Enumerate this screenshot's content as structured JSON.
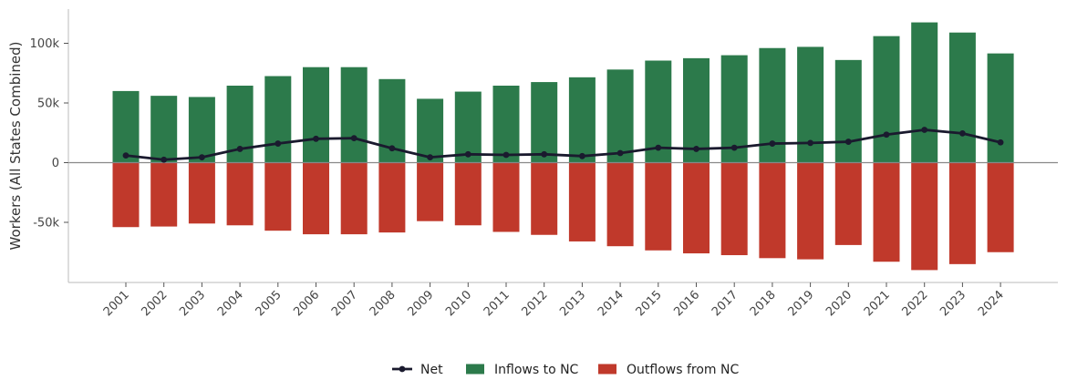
{
  "chart_data": {
    "type": "bar",
    "title": "",
    "xlabel": "",
    "ylabel": "Workers (All States Combined)",
    "ylim": [
      -100000,
      128000
    ],
    "yticks": [
      {
        "value": 100000,
        "label": "100k"
      },
      {
        "value": 50000,
        "label": "50k"
      },
      {
        "value": 0,
        "label": "0"
      },
      {
        "value": -50000,
        "label": "-50k"
      }
    ],
    "grid": false,
    "legend_position": "bottom-center",
    "categories": [
      "2001",
      "2002",
      "2003",
      "2004",
      "2005",
      "2006",
      "2007",
      "2008",
      "2009",
      "2010",
      "2011",
      "2012",
      "2013",
      "2014",
      "2015",
      "2016",
      "2017",
      "2018",
      "2019",
      "2020",
      "2021",
      "2022",
      "2023",
      "2024"
    ],
    "series": [
      {
        "name": "Inflows to NC",
        "type": "bar",
        "color": "#2c7a4b",
        "values": [
          60000,
          56000,
          55000,
          64500,
          72500,
          80000,
          80000,
          70000,
          53500,
          59500,
          64500,
          67500,
          71500,
          78000,
          85500,
          87500,
          90000,
          96000,
          97000,
          86000,
          106000,
          117500,
          109000,
          91500
        ]
      },
      {
        "name": "Outflows from NC",
        "type": "bar",
        "color": "#c0392b",
        "values": [
          -54000,
          -53500,
          -51000,
          -52500,
          -57000,
          -60000,
          -60000,
          -58500,
          -49000,
          -52500,
          -58000,
          -60500,
          -66000,
          -70000,
          -73500,
          -76000,
          -77500,
          -80000,
          -81000,
          -69000,
          -83000,
          -90000,
          -85000,
          -75000
        ]
      },
      {
        "name": "Net",
        "type": "line",
        "color": "#1a1a2e",
        "values": [
          6000,
          2500,
          4500,
          11500,
          16000,
          20000,
          20500,
          12000,
          4500,
          7000,
          6500,
          7000,
          5500,
          8000,
          12500,
          11500,
          12500,
          16000,
          16500,
          17500,
          23500,
          27500,
          24500,
          17000
        ]
      }
    ]
  }
}
